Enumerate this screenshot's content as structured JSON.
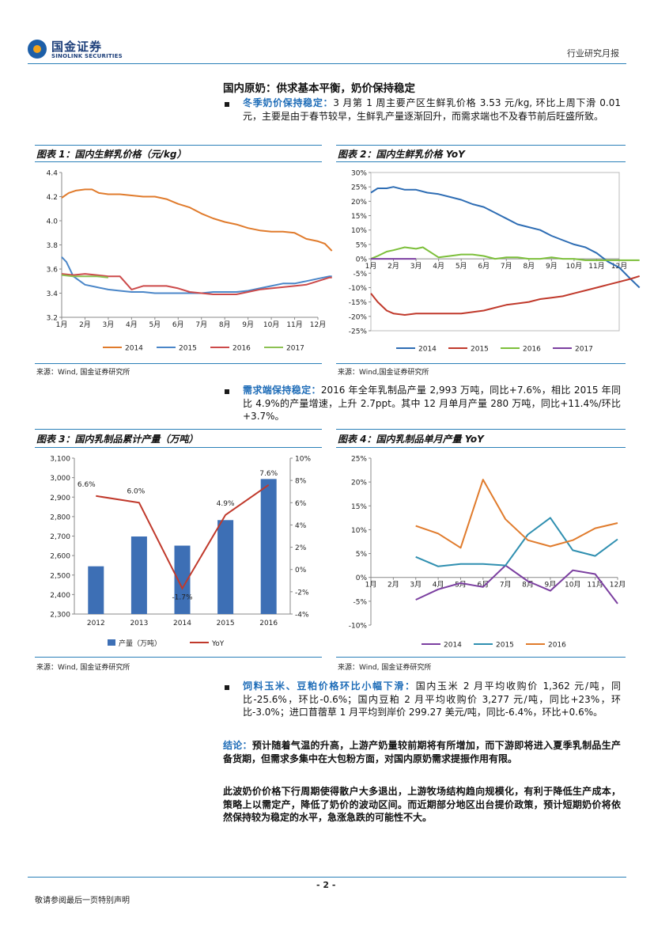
{
  "header": {
    "logo_cn": "国金证券",
    "logo_en": "SINOLINK SECURITIES",
    "report_type": "行业研究月报"
  },
  "section_title": "国内原奶：供求基本平衡，奶价保持稳定",
  "bullet1": {
    "lead": "冬季奶价保持稳定：",
    "text": "3 月第 1 周主要产区生鲜乳价格 3.53 元/kg, 环比上周下滑 0.01 元，主要是由于春节较早，生鲜乳产量逐渐回升，而需求端也不及春节前后旺盛所致。"
  },
  "bullet2": {
    "lead": "需求端保持稳定：",
    "text": "2016 年全年乳制品产量 2,993 万吨，同比+7.6%，相比 2015 年同比 4.9%的产量增速，上升 2.7ppt。其中 12 月单月产量 280 万吨，同比+11.4%/环比+3.7%。"
  },
  "bullet3": {
    "lead": "饲料玉米、豆粕价格环比小幅下滑：",
    "text": "国内玉米 2 月平均收购价 1,362 元/吨，同比-25.6%，环比-0.6%；国内豆粕 2 月平均收购价 3,277 元/吨，同比+23%，环比-3.0%；进口苜蓿草 1 月平均到岸价 299.27 美元/吨，同比-6.4%，环比+0.6%。"
  },
  "conclusion": {
    "lead": "结论：",
    "text": "预计随着气温的升高，上游产奶量较前期将有所增加，而下游即将进入夏季乳制品生产备货期，但需求多集中在大包粉方面，对国内原奶需求提振作用有限。"
  },
  "closing": "此波奶价价格下行周期使得散户大多退出，上游牧场结构趋向规模化，有利于降低生产成本，策略上以需定产，降低了奶价的波动区间。而近期部分地区出台提价政策，预计短期奶价将依然保持较为稳定的水平，急涨急跌的可能性不大。",
  "sources": {
    "s1": "来源：Wind, 国金证券研究所",
    "s2": "来源：Wind,国金证券研究所",
    "s3": "来源：Wind, 国金证券研究所",
    "s4": "来源：Wind, 国金证券研究所"
  },
  "footer": {
    "page": "- 2 -",
    "disclaimer": "敬请参阅最后一页特别声明"
  },
  "chart_data": [
    {
      "id": "chart1",
      "type": "line",
      "title": "图表 1：国内生鲜乳价格（元/kg）",
      "categories": [
        "1月",
        "2月",
        "3月",
        "4月",
        "5月",
        "6月",
        "7月",
        "8月",
        "9月",
        "10月",
        "11月",
        "12月"
      ],
      "ylim": [
        3.2,
        4.4
      ],
      "yticks": [
        "3.2",
        "3.4",
        "3.6",
        "3.8",
        "4.0",
        "4.2",
        "4.4"
      ],
      "series": [
        {
          "name": "2014",
          "color": "#e07b2c",
          "x": [
            1,
            1.3,
            1.6,
            2,
            2.3,
            2.6,
            3,
            3.5,
            4,
            4.5,
            5,
            5.5,
            6,
            6.5,
            7,
            7.5,
            8,
            8.5,
            9,
            9.5,
            10,
            10.5,
            11,
            11.5,
            12,
            12.3,
            12.6
          ],
          "values": [
            4.19,
            4.23,
            4.25,
            4.26,
            4.26,
            4.23,
            4.22,
            4.22,
            4.21,
            4.2,
            4.2,
            4.18,
            4.14,
            4.11,
            4.06,
            4.02,
            3.99,
            3.97,
            3.94,
            3.92,
            3.91,
            3.91,
            3.9,
            3.85,
            3.83,
            3.81,
            3.75
          ]
        },
        {
          "name": "2015",
          "color": "#4a86c8",
          "x": [
            1,
            1.2,
            1.5,
            2,
            2.5,
            3,
            3.5,
            4,
            4.5,
            5,
            5.5,
            6,
            6.5,
            7,
            7.5,
            8,
            8.5,
            9,
            9.5,
            10,
            10.5,
            11,
            11.5,
            12,
            12.5,
            12.6
          ],
          "values": [
            3.7,
            3.66,
            3.54,
            3.47,
            3.45,
            3.43,
            3.42,
            3.41,
            3.41,
            3.4,
            3.4,
            3.4,
            3.4,
            3.4,
            3.41,
            3.41,
            3.41,
            3.42,
            3.44,
            3.46,
            3.48,
            3.48,
            3.5,
            3.52,
            3.54,
            3.54
          ]
        },
        {
          "name": "2016",
          "color": "#cc4a4a",
          "x": [
            1,
            1.5,
            2,
            2.5,
            3,
            3.5,
            4,
            4.5,
            5,
            5.5,
            6,
            6.5,
            7,
            7.5,
            8,
            8.5,
            9,
            9.5,
            10,
            10.5,
            11,
            11.5,
            12,
            12.5,
            12.6
          ],
          "values": [
            3.56,
            3.55,
            3.56,
            3.55,
            3.54,
            3.54,
            3.43,
            3.46,
            3.46,
            3.46,
            3.44,
            3.41,
            3.4,
            3.39,
            3.39,
            3.39,
            3.41,
            3.43,
            3.44,
            3.45,
            3.46,
            3.47,
            3.5,
            3.53,
            3.53
          ]
        },
        {
          "name": "2017",
          "color": "#8cc152",
          "x": [
            1,
            1.5,
            2,
            2.5,
            3
          ],
          "values": [
            3.55,
            3.54,
            3.54,
            3.54,
            3.53
          ]
        }
      ]
    },
    {
      "id": "chart2",
      "type": "line",
      "title": "图表 2：国内生鲜乳价格 YoY",
      "categories": [
        "1月",
        "2月",
        "3月",
        "4月",
        "5月",
        "6月",
        "7月",
        "8月",
        "9月",
        "10月",
        "11月",
        "12月"
      ],
      "ylim": [
        -25,
        30
      ],
      "yticks": [
        "-25%",
        "-20%",
        "-15%",
        "-10%",
        "-5%",
        "0%",
        "5%",
        "10%",
        "15%",
        "20%",
        "25%",
        "30%"
      ],
      "series": [
        {
          "name": "2014",
          "color": "#2e6db4",
          "x": [
            1,
            1.3,
            1.7,
            2,
            2.5,
            3,
            3.5,
            4,
            4.5,
            5,
            5.5,
            6,
            6.5,
            7,
            7.5,
            8,
            8.5,
            9,
            9.5,
            10,
            10.5,
            11,
            11.5,
            12,
            12.5,
            12.9
          ],
          "values": [
            23,
            24.5,
            24.5,
            25,
            24,
            24,
            23,
            22.5,
            21.5,
            20.5,
            19,
            18,
            16,
            14,
            12,
            11,
            10,
            8,
            6.5,
            5,
            4,
            2,
            -1,
            -3,
            -7,
            -10
          ]
        },
        {
          "name": "2015",
          "color": "#c0392b",
          "x": [
            1,
            1.3,
            1.7,
            2,
            2.5,
            3,
            3.5,
            4,
            4.5,
            5,
            5.5,
            6,
            6.5,
            7,
            7.5,
            8,
            8.5,
            9,
            9.5,
            10,
            10.5,
            11,
            11.5,
            12,
            12.5,
            12.9
          ],
          "values": [
            -12,
            -15,
            -18,
            -19,
            -19.5,
            -19,
            -19,
            -19,
            -19,
            -19,
            -18.5,
            -18,
            -17,
            -16,
            -15.5,
            -15,
            -14,
            -13.5,
            -13,
            -12,
            -11,
            -10,
            -9,
            -8,
            -7,
            -6
          ]
        },
        {
          "name": "2016",
          "color": "#7cbf3a",
          "x": [
            1,
            1.3,
            1.7,
            2,
            2.5,
            3,
            3.3,
            3.7,
            4,
            4.5,
            5,
            5.5,
            6,
            6.5,
            7,
            7.5,
            8,
            8.5,
            9,
            9.5,
            10,
            10.5,
            11,
            11.5,
            12,
            12.9
          ],
          "values": [
            0,
            1,
            2.5,
            3,
            4,
            3.5,
            4,
            2,
            0.5,
            1,
            1.5,
            1.5,
            1,
            0,
            0.5,
            0.5,
            0,
            0,
            0.5,
            0,
            0,
            -0.5,
            -0.5,
            -0.5,
            -0.5,
            -0.5
          ]
        },
        {
          "name": "2017",
          "color": "#7b3fa0",
          "x": [
            1,
            1.5,
            2,
            2.5,
            3
          ],
          "values": [
            0,
            0,
            0,
            0,
            0
          ]
        }
      ]
    },
    {
      "id": "chart3",
      "type": "bar",
      "title": "图表 3：国内乳制品累计产量（万吨）",
      "categories": [
        "2012",
        "2013",
        "2014",
        "2015",
        "2016"
      ],
      "y_left": {
        "lim": [
          2300,
          3100
        ],
        "ticks": [
          "2,300",
          "2,400",
          "2,500",
          "2,600",
          "2,700",
          "2,800",
          "2,900",
          "3,000",
          "3,100"
        ]
      },
      "y_right": {
        "lim": [
          -4,
          10
        ],
        "ticks": [
          "-4%",
          "-2%",
          "0%",
          "2%",
          "4%",
          "6%",
          "8%",
          "10%"
        ]
      },
      "series": [
        {
          "name": "产量（万吨）",
          "color": "#3d6fb5",
          "kind": "bar",
          "values": [
            2545,
            2698,
            2651,
            2782,
            2993
          ]
        },
        {
          "name": "YoY",
          "color": "#c0392b",
          "kind": "line",
          "values": [
            6.6,
            6.0,
            -1.7,
            4.9,
            7.6
          ],
          "labels": [
            "6.6%",
            "6.0%",
            "-1.7%",
            "4.9%",
            "7.6%"
          ]
        }
      ]
    },
    {
      "id": "chart4",
      "type": "line",
      "title": "图表 4：国内乳制品单月产量 YoY",
      "categories": [
        "1月",
        "2月",
        "3月",
        "4月",
        "5月",
        "6月",
        "7月",
        "8月",
        "9月",
        "10月",
        "11月",
        "12月"
      ],
      "ylim": [
        -10,
        25
      ],
      "yticks": [
        "-10%",
        "-5%",
        "0%",
        "5%",
        "10%",
        "15%",
        "20%",
        "25%"
      ],
      "series": [
        {
          "name": "2014",
          "color": "#7b3fa0",
          "x": [
            3,
            4,
            5,
            6,
            7,
            8,
            9,
            10,
            11,
            12
          ],
          "values": [
            -4.7,
            -2.5,
            -1.2,
            -2.0,
            2.5,
            -0.8,
            -2.8,
            1.5,
            0.7,
            -5.5
          ]
        },
        {
          "name": "2015",
          "color": "#2f8fb0",
          "x": [
            3,
            4,
            5,
            6,
            7,
            8,
            9,
            10,
            11,
            12
          ],
          "values": [
            4.3,
            2.3,
            2.8,
            2.8,
            2.5,
            9.0,
            12.5,
            5.7,
            4.5,
            8.0
          ]
        },
        {
          "name": "2016",
          "color": "#e07b2c",
          "x": [
            3,
            4,
            5,
            6,
            7,
            8,
            9,
            10,
            11,
            12
          ],
          "values": [
            10.8,
            9.2,
            6.2,
            20.5,
            12.2,
            7.8,
            6.5,
            7.8,
            10.3,
            11.4
          ]
        }
      ]
    }
  ]
}
